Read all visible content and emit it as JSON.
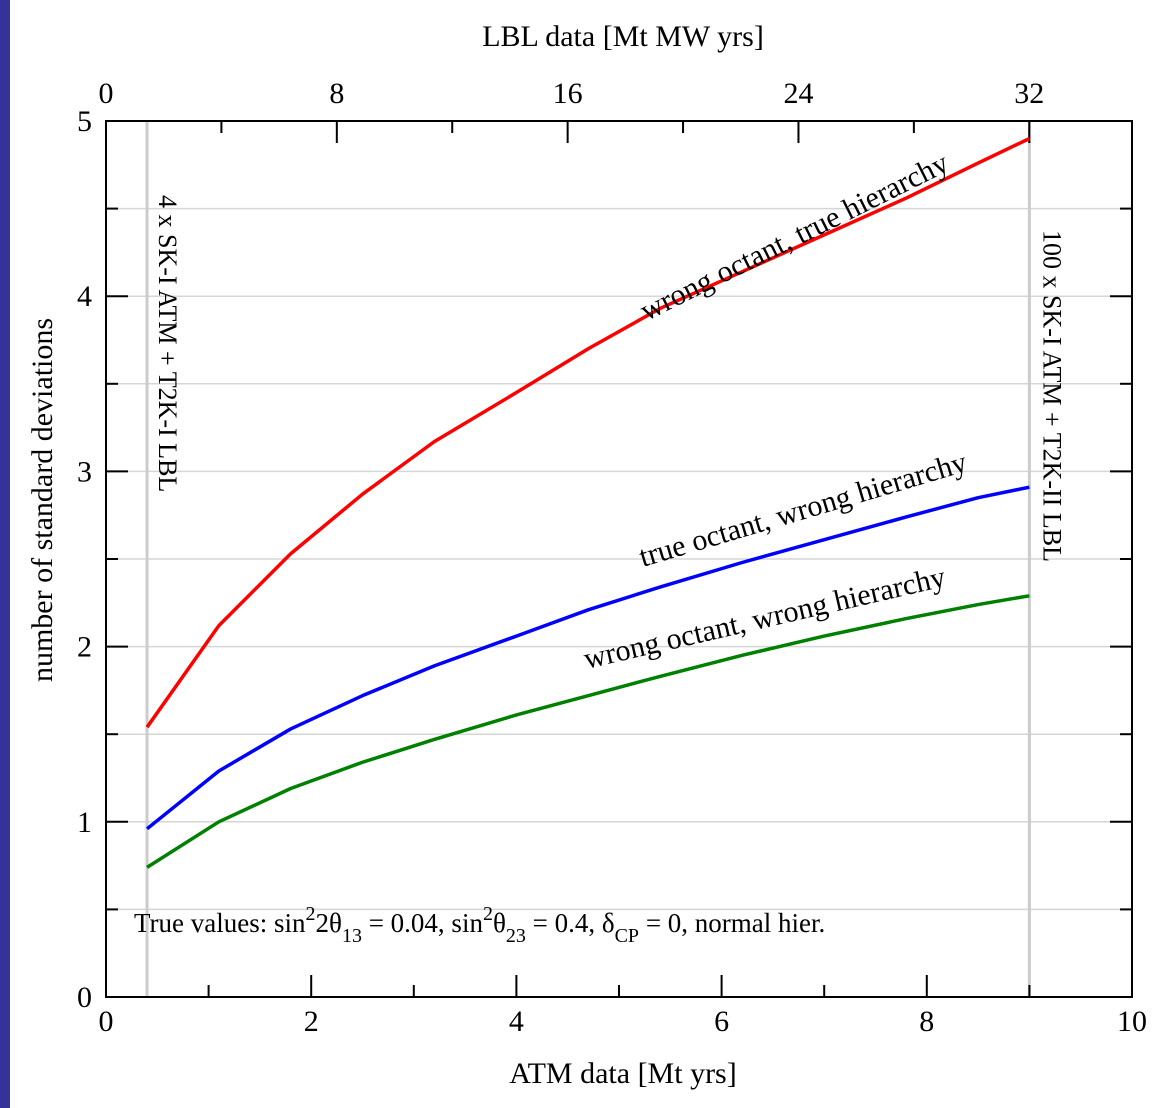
{
  "chart_data": {
    "type": "line",
    "xlabel": "ATM data [Mt yrs]",
    "ylabel": "number of standard deviations",
    "x2label": "LBL data [Mt MW yrs]",
    "xlim": [
      0,
      10
    ],
    "ylim": [
      0,
      5
    ],
    "x2lim": [
      0,
      35.56
    ],
    "xticks": [
      "0",
      "2",
      "4",
      "6",
      "8",
      "10"
    ],
    "yticks": [
      "0",
      "1",
      "2",
      "3",
      "4",
      "5"
    ],
    "x2ticks": [
      "0",
      "8",
      "16",
      "24",
      "32"
    ],
    "grid": "horizontal",
    "vlines": [
      {
        "x": 0.4,
        "label": "4 x SK-I ATM  +  T2K-I LBL",
        "color": "#cccccc"
      },
      {
        "x": 9.0,
        "label": "100 x SK-I ATM  +  T2K-II LBL",
        "color": "#cccccc"
      }
    ],
    "series": [
      {
        "name": "wrong octant,  true hierarchy",
        "color": "#ff0000",
        "x": [
          0.4,
          1.1,
          1.8,
          2.5,
          3.2,
          4.0,
          4.7,
          5.4,
          6.2,
          7.0,
          7.8,
          8.5,
          9.0
        ],
        "y": [
          1.54,
          2.12,
          2.53,
          2.87,
          3.17,
          3.45,
          3.7,
          3.93,
          4.14,
          4.35,
          4.56,
          4.76,
          4.9
        ]
      },
      {
        "name": "true octant, wrong hierarchy",
        "color": "#0000ff",
        "x": [
          0.4,
          1.1,
          1.8,
          2.5,
          3.2,
          4.0,
          4.7,
          5.4,
          6.2,
          7.0,
          7.8,
          8.5,
          9.0
        ],
        "y": [
          0.96,
          1.29,
          1.53,
          1.72,
          1.89,
          2.06,
          2.21,
          2.34,
          2.48,
          2.61,
          2.74,
          2.85,
          2.91
        ]
      },
      {
        "name": "wrong octant, wrong hierarchy",
        "color": "#008000",
        "x": [
          0.4,
          1.1,
          1.8,
          2.5,
          3.2,
          4.0,
          4.7,
          5.4,
          6.2,
          7.0,
          7.8,
          8.5,
          9.0
        ],
        "y": [
          0.74,
          1.0,
          1.19,
          1.34,
          1.47,
          1.61,
          1.72,
          1.83,
          1.95,
          2.06,
          2.16,
          2.24,
          2.29
        ]
      }
    ],
    "annotation": {
      "prefix": "True values: sin",
      "sup1": "2",
      "mid1": "2θ",
      "sub1": "13",
      "mid2": " = 0.04, sin",
      "sup2": "2",
      "mid3": "θ",
      "sub2": "23",
      "mid4": " = 0.4, δ",
      "sub3": "CP",
      "suffix": " = 0, normal hier."
    }
  }
}
